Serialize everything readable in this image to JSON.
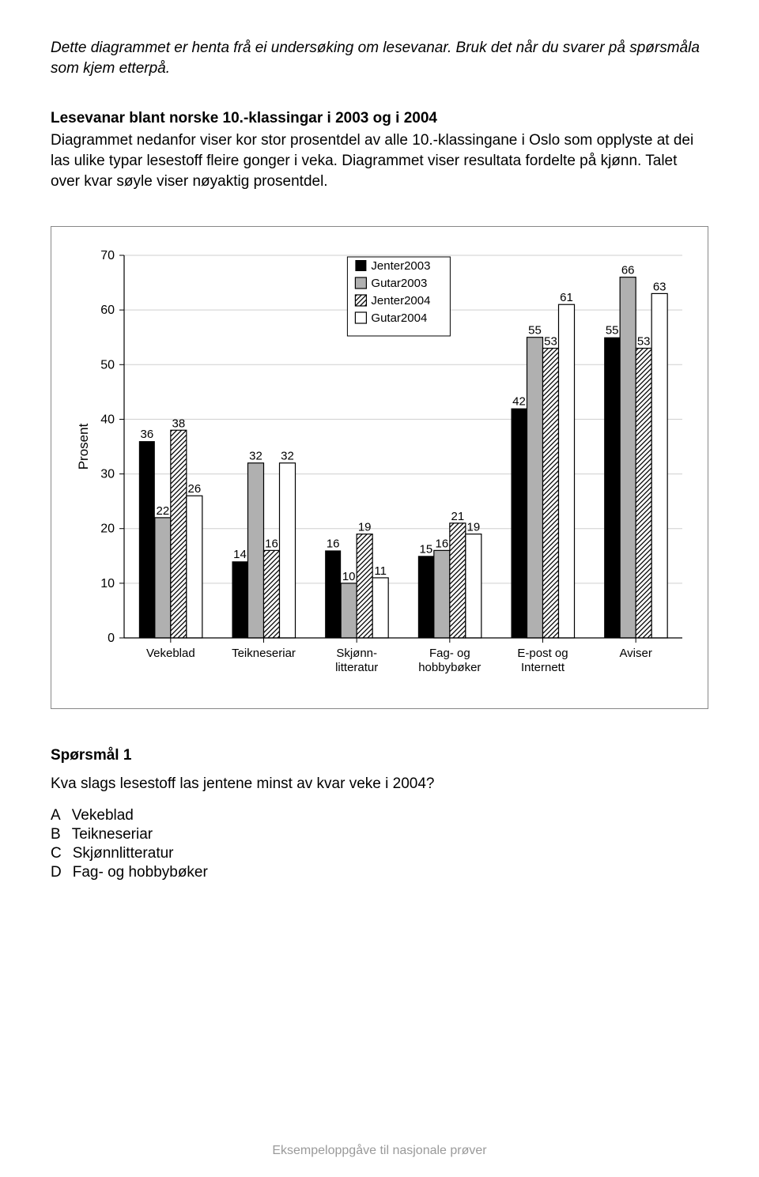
{
  "intro": "Dette diagrammet er henta frå ei undersøking om lesevanar. Bruk det når du svarer på spørsmåla som kjem etterpå.",
  "heading": "Lesevanar blant norske 10.-klassingar i 2003 og i 2004",
  "description": "Diagrammet nedanfor viser kor stor prosentdel av alle 10.-klassingane i Oslo som opplyste at dei las ulike typar lesestoff fleire gonger i veka. Diagrammet viser resultata fordelte på kjønn. Talet over kvar søyle viser nøyaktig prosentdel.",
  "chart": {
    "type": "bar",
    "categories": [
      "Vekeblad",
      "Teikneseriar",
      "Skjønn-\nlitteratur",
      "Fag- og\nhobbybøker",
      "E-post og\nInternett",
      "Aviser"
    ],
    "series": [
      {
        "name": "Jenter2003",
        "values": [
          36,
          14,
          16,
          15,
          42,
          55
        ]
      },
      {
        "name": "Gutar2003",
        "values": [
          22,
          32,
          10,
          16,
          55,
          66
        ]
      },
      {
        "name": "Jenter2004",
        "values": [
          38,
          16,
          19,
          21,
          53,
          53
        ]
      },
      {
        "name": "Gutar2004",
        "values": [
          26,
          32,
          11,
          19,
          61,
          63
        ]
      }
    ],
    "fills": {
      "Jenter2003": {
        "color": "#000000"
      },
      "Gutar2003": {
        "color": "#b0b0b0",
        "border": "#000000"
      },
      "Jenter2004": {
        "color": "#ffffff",
        "pattern": "diag-hatch",
        "border": "#000000"
      },
      "Gutar2004": {
        "color": "#ffffff",
        "border": "#000000"
      }
    },
    "ylabel": "Prosent",
    "ylim": [
      0,
      70
    ],
    "ytick_step": 10,
    "grid_color": "#cfcfcf",
    "axis_color": "#000000",
    "legend_border": "#000000",
    "label_fontsize": 15,
    "axis_fontsize": 16,
    "ylabel_fontsize": 17,
    "background_color": "#ffffff",
    "bar_group_width": 0.68,
    "legend_items": [
      "Jenter2003",
      "Gutar2003",
      "Jenter2004",
      "Gutar2004"
    ]
  },
  "question": {
    "head": "Spørsmål 1",
    "text": "Kva slags lesestoff las jentene minst av kvar veke i 2004?",
    "answers": [
      {
        "letter": "A",
        "label": "Vekeblad"
      },
      {
        "letter": "B",
        "label": "Teikneseriar"
      },
      {
        "letter": "C",
        "label": "Skjønnlitteratur"
      },
      {
        "letter": "D",
        "label": "Fag- og hobbybøker"
      }
    ]
  },
  "footer": "Eksempeloppgåve til nasjonale prøver"
}
